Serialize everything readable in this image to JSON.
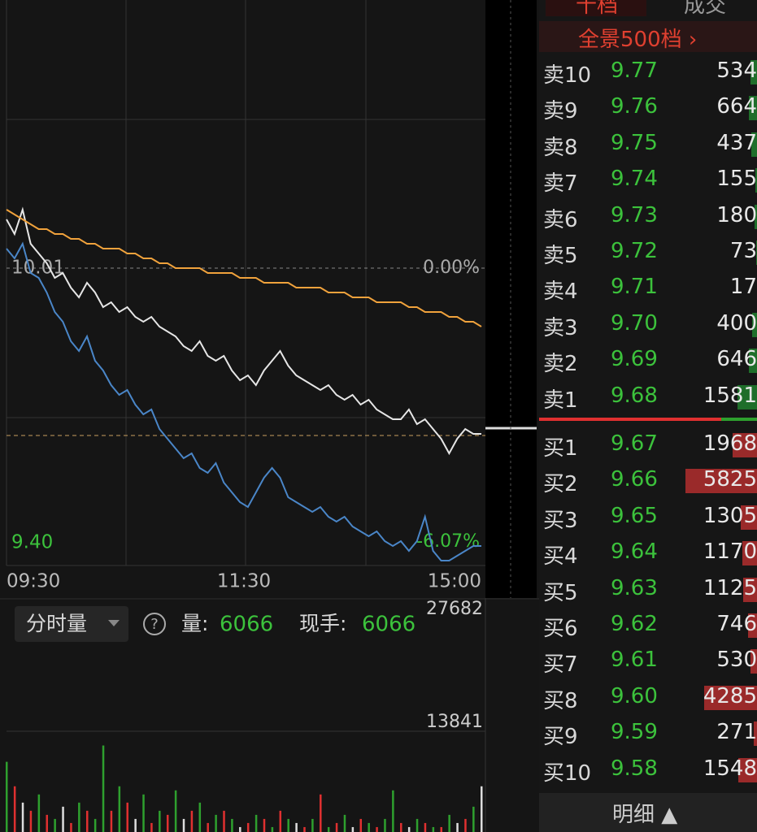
{
  "price_chart": {
    "type": "line",
    "x_labels": [
      "09:30",
      "11:30",
      "15:00"
    ],
    "ylim": [
      9.4,
      10.56
    ],
    "yticks": [
      {
        "value": 10.01,
        "label": "10.01"
      },
      {
        "value": 9.4,
        "label": "9.40"
      }
    ],
    "y2lim": [
      -6.09,
      5.49
    ],
    "y2ticks": [
      {
        "value": 0,
        "label": "0.00%"
      },
      {
        "value": -6.07,
        "label": "-6.07%"
      }
    ],
    "series": [
      {
        "color": "#e6e6e6",
        "values": [
          10.11,
          10.08,
          10.13,
          10.06,
          10.04,
          10.02,
          9.99,
          10.0,
          9.97,
          9.95,
          9.98,
          9.96,
          9.93,
          9.94,
          9.92,
          9.93,
          9.91,
          9.9,
          9.91,
          9.89,
          9.88,
          9.87,
          9.85,
          9.84,
          9.86,
          9.83,
          9.82,
          9.83,
          9.8,
          9.78,
          9.79,
          9.77,
          9.8,
          9.82,
          9.84,
          9.81,
          9.79,
          9.78,
          9.77,
          9.76,
          9.77,
          9.75,
          9.74,
          9.75,
          9.73,
          9.74,
          9.72,
          9.71,
          9.7,
          9.7,
          9.72,
          9.69,
          9.7,
          9.68,
          9.66,
          9.63,
          9.66,
          9.68,
          9.67,
          9.67
        ]
      },
      {
        "color": "#4a86c8",
        "values": [
          10.05,
          10.03,
          10.06,
          10.0,
          9.99,
          9.96,
          9.92,
          9.9,
          9.86,
          9.84,
          9.87,
          9.82,
          9.8,
          9.77,
          9.75,
          9.76,
          9.73,
          9.71,
          9.72,
          9.68,
          9.66,
          9.64,
          9.62,
          9.63,
          9.6,
          9.59,
          9.61,
          9.57,
          9.55,
          9.53,
          9.52,
          9.55,
          9.58,
          9.6,
          9.58,
          9.54,
          9.53,
          9.52,
          9.51,
          9.52,
          9.5,
          9.49,
          9.5,
          9.48,
          9.47,
          9.46,
          9.47,
          9.45,
          9.44,
          9.45,
          9.43,
          9.45,
          9.5,
          9.43,
          9.41,
          9.41,
          9.42,
          9.43,
          9.44,
          9.44
        ]
      },
      {
        "color": "#f0a23c",
        "values": [
          10.13,
          10.12,
          10.11,
          10.1,
          10.09,
          10.09,
          10.08,
          10.08,
          10.07,
          10.07,
          10.06,
          10.06,
          10.05,
          10.05,
          10.05,
          10.04,
          10.04,
          10.03,
          10.03,
          10.02,
          10.02,
          10.01,
          10.01,
          10.01,
          10.01,
          10.0,
          10.0,
          10.0,
          10.0,
          9.99,
          9.99,
          9.99,
          9.98,
          9.98,
          9.98,
          9.98,
          9.97,
          9.97,
          9.97,
          9.97,
          9.96,
          9.96,
          9.96,
          9.95,
          9.95,
          9.95,
          9.94,
          9.94,
          9.94,
          9.94,
          9.93,
          9.93,
          9.92,
          9.92,
          9.92,
          9.91,
          9.91,
          9.9,
          9.9,
          9.89
        ]
      }
    ]
  },
  "volume_chart": {
    "type": "bar",
    "mode": "分时量",
    "volume_label": "量:",
    "volume": "6066",
    "hand_label": "现手:",
    "hand": "6066",
    "ylim": [
      0,
      27682
    ],
    "yticks": [
      13841,
      27682
    ],
    "values": [
      9000,
      6000,
      4000,
      3000,
      5000,
      2500,
      2000,
      3500,
      1500,
      4000,
      3000,
      2000,
      11000,
      3000,
      6000,
      4000,
      2000,
      5000,
      1500,
      3000,
      2500,
      5500,
      2000,
      3000,
      4000,
      1500,
      2500,
      3000,
      2000,
      1000,
      1500,
      2500,
      2000,
      1000,
      3000,
      2000,
      1500,
      1000,
      2000,
      5000,
      1000,
      1500,
      2500,
      1000,
      2000,
      1500,
      1000,
      2000,
      5500,
      1500,
      1000,
      2000,
      1500,
      1000,
      1000,
      2500,
      1500,
      2000,
      3500,
      6000
    ],
    "bar_colors": [
      "#2ea02e",
      "#e03030",
      "#dddddd",
      "#e03030",
      "#2ea02e",
      "#e03030",
      "#2ea02e",
      "#dddddd",
      "#e03030",
      "#2ea02e",
      "#e03030",
      "#2ea02e",
      "#2ea02e",
      "#e03030",
      "#2ea02e",
      "#e03030",
      "#dddddd",
      "#2ea02e",
      "#e03030",
      "#2ea02e",
      "#e03030",
      "#2ea02e",
      "#dddddd",
      "#e03030",
      "#2ea02e",
      "#e03030",
      "#2ea02e",
      "#e03030",
      "#2ea02e",
      "#dddddd",
      "#e03030",
      "#2ea02e",
      "#e03030",
      "#2ea02e",
      "#e03030",
      "#2ea02e",
      "#dddddd",
      "#e03030",
      "#2ea02e",
      "#e03030",
      "#2ea02e",
      "#e03030",
      "#2ea02e",
      "#dddddd",
      "#e03030",
      "#2ea02e",
      "#e03030",
      "#2ea02e",
      "#2ea02e",
      "#e03030",
      "#dddddd",
      "#2ea02e",
      "#e03030",
      "#2ea02e",
      "#e03030",
      "#2ea02e",
      "#dddddd",
      "#e03030",
      "#2ea02e",
      "#dddddd"
    ]
  },
  "order_book": {
    "tabs": [
      "十档",
      "成交"
    ],
    "panorama": "全景500档 ›",
    "sell": [
      {
        "label": "卖10",
        "price": "9.77",
        "qty": 534
      },
      {
        "label": "卖9",
        "price": "9.76",
        "qty": 664
      },
      {
        "label": "卖8",
        "price": "9.75",
        "qty": 437
      },
      {
        "label": "卖7",
        "price": "9.74",
        "qty": 155
      },
      {
        "label": "卖6",
        "price": "9.73",
        "qty": 180
      },
      {
        "label": "卖5",
        "price": "9.72",
        "qty": 73
      },
      {
        "label": "卖4",
        "price": "9.71",
        "qty": 17
      },
      {
        "label": "卖3",
        "price": "9.70",
        "qty": 400
      },
      {
        "label": "卖2",
        "price": "9.69",
        "qty": 646
      },
      {
        "label": "卖1",
        "price": "9.68",
        "qty": 1581
      }
    ],
    "buy": [
      {
        "label": "买1",
        "price": "9.67",
        "qty": 1968
      },
      {
        "label": "买2",
        "price": "9.66",
        "qty": 5825
      },
      {
        "label": "买3",
        "price": "9.65",
        "qty": 1305
      },
      {
        "label": "买4",
        "price": "9.64",
        "qty": 1170
      },
      {
        "label": "买5",
        "price": "9.63",
        "qty": 1125
      },
      {
        "label": "买6",
        "price": "9.62",
        "qty": 746
      },
      {
        "label": "买7",
        "price": "9.61",
        "qty": 530
      },
      {
        "label": "买8",
        "price": "9.60",
        "qty": 4285
      },
      {
        "label": "买9",
        "price": "9.59",
        "qty": 271
      },
      {
        "label": "买10",
        "price": "9.58",
        "qty": 1548
      }
    ],
    "detail": "明细 ▲"
  }
}
